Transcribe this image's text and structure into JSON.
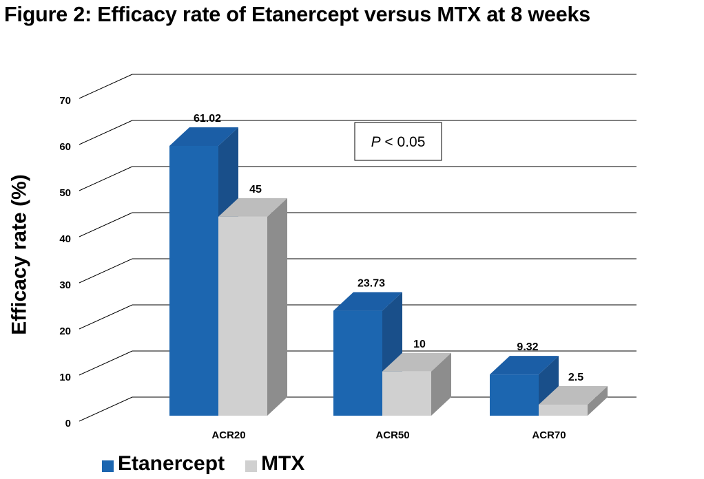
{
  "page": {
    "title": "Figure 2: Efficacy rate of Etanercept versus MTX at 8 weeks"
  },
  "annotation": "P < 0.05",
  "colors": {
    "etanercept_front": "#1c66b0",
    "etanercept_top": "#1b5ea6",
    "etanercept_side": "#194f8a",
    "mtx_front": "#d0d0d0",
    "mtx_top": "#bdbdbd",
    "mtx_side": "#8d8d8d",
    "grid": "#000000",
    "text": "#000000"
  },
  "chart_data": {
    "type": "bar",
    "title": "Figure 2: Efficacy rate of Etanercept versus MTX at 8 weeks",
    "xlabel": "",
    "ylabel": "Efficacy rate (%)",
    "ylim": [
      0,
      70
    ],
    "yticks": [
      0,
      10,
      20,
      30,
      40,
      50,
      60,
      70
    ],
    "grid": true,
    "legend_position": "bottom",
    "style": "3d-clustered-column",
    "categories": [
      "ACR20",
      "ACR50",
      "ACR70"
    ],
    "series": [
      {
        "name": "Etanercept",
        "values": [
          61.02,
          23.73,
          9.32
        ],
        "labels": [
          "61.02",
          "23.73",
          "9.32"
        ]
      },
      {
        "name": "MTX",
        "values": [
          45,
          10,
          2.5
        ],
        "labels": [
          "45",
          "10",
          "2.5"
        ]
      }
    ]
  }
}
